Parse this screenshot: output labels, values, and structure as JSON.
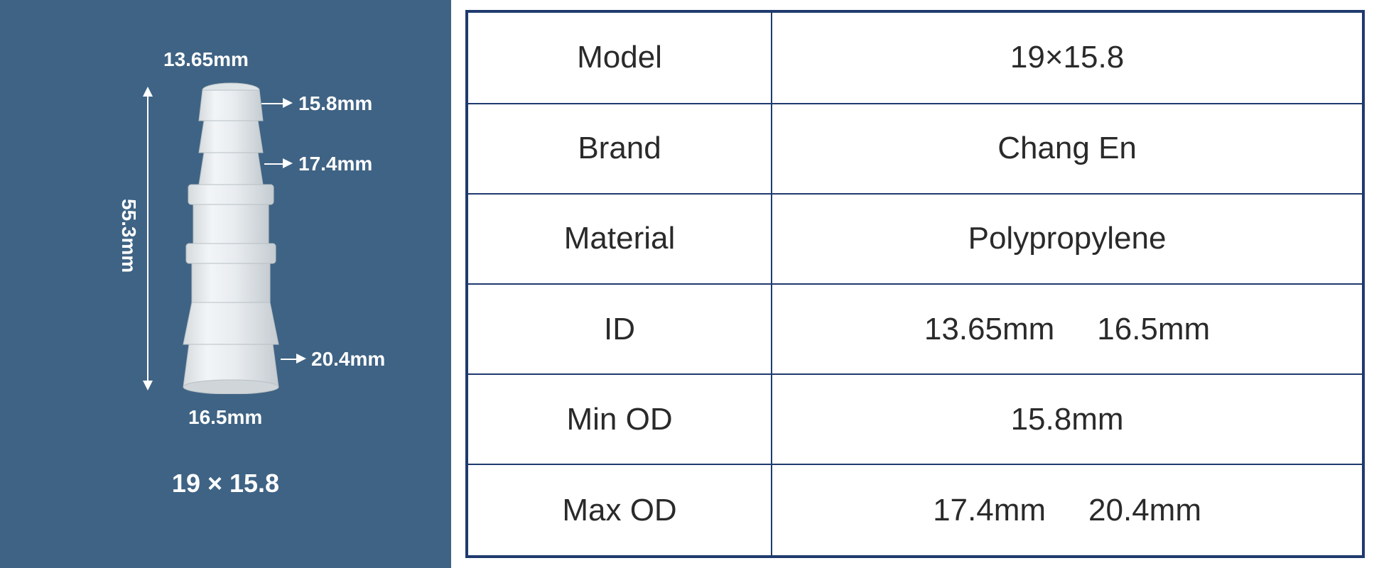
{
  "diagram": {
    "panel_bg": "#3f6384",
    "label_color": "#ffffff",
    "title": "19 × 15.8",
    "title_fontsize": 36,
    "label_fontsize": 28,
    "dim_top_id": "13.65mm",
    "dim_top_od": "15.8mm",
    "dim_mid_od": "17.4mm",
    "dim_bot_od": "20.4mm",
    "dim_bot_id": "16.5mm",
    "dim_height": "55.3mm",
    "connector_color_light": "#e8ecef",
    "connector_color_shadow": "#c5ccd1",
    "connector_color_edge": "#d5dadd"
  },
  "table": {
    "border_color": "#1f3a6e",
    "border_width": 4,
    "inner_border_width": 2,
    "text_color": "#2a2a2a",
    "fontsize": 44,
    "rows": [
      {
        "key": "Model",
        "vals": [
          "19×15.8"
        ]
      },
      {
        "key": "Brand",
        "vals": [
          "Chang En"
        ]
      },
      {
        "key": "Material",
        "vals": [
          "Polypropylene"
        ]
      },
      {
        "key": "ID",
        "vals": [
          "13.65mm",
          "16.5mm"
        ]
      },
      {
        "key": "Min OD",
        "vals": [
          "15.8mm"
        ]
      },
      {
        "key": "Max OD",
        "vals": [
          "17.4mm",
          "20.4mm"
        ]
      }
    ]
  }
}
